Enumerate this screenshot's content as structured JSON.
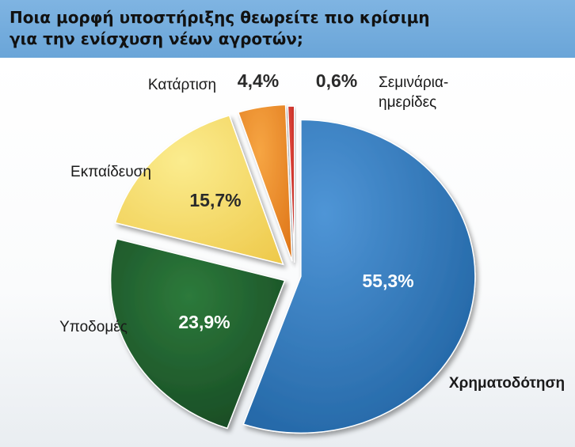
{
  "header": {
    "title": "Ποια μορφή υποστήριξης θεωρείτε πιο κρίσιμη\nγια την ενίσχυση νέων αγροτών;"
  },
  "colors": {
    "header_bg": "#6fa8da",
    "Χρηματοδότηση": "#2a72b4",
    "Υποδομές": "#1f5c2c",
    "Εκπαίδευση": "#f6dc62",
    "Κατάρτιση": "#ea8a25",
    "Σεμινάρια-ημερίδες": "#cc2a22"
  },
  "chart_data": {
    "type": "pie",
    "title": "Ποια μορφή υποστήριξης θεωρείτε πιο κρίσιμη για την ενίσχυση νέων αγροτών;",
    "slices": [
      {
        "label": "Χρηματοδότηση",
        "value": 55.3,
        "value_text": "55,3%"
      },
      {
        "label": "Υποδομές",
        "value": 23.9,
        "value_text": "23,9%"
      },
      {
        "label": "Εκπαίδευση",
        "value": 15.7,
        "value_text": "15,7%"
      },
      {
        "label": "Κατάρτιση",
        "value": 4.4,
        "value_text": "4,4%"
      },
      {
        "label": "Σεμινάρια-ημερίδες",
        "value": 0.6,
        "value_text": "0,6%"
      }
    ]
  }
}
